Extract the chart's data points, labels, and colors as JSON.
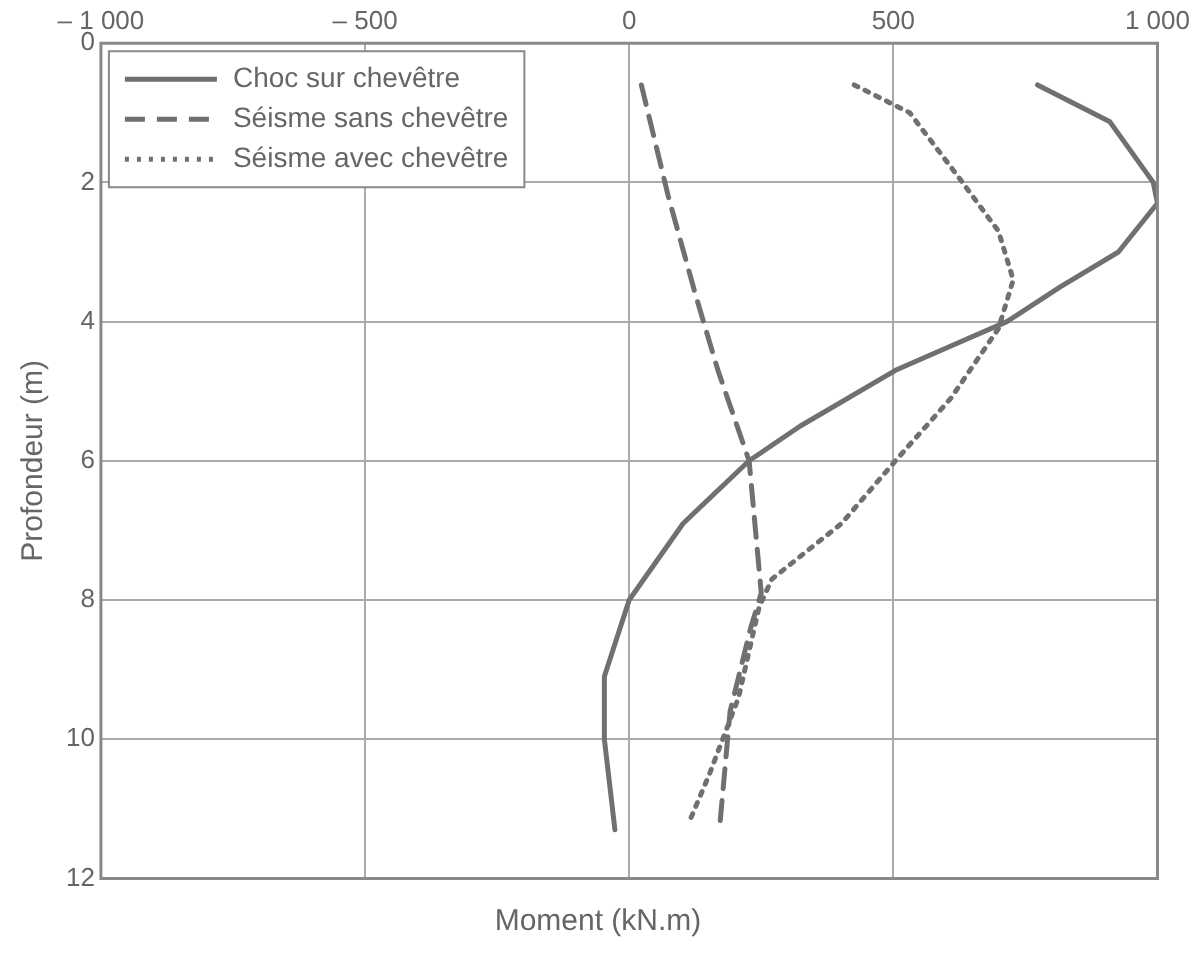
{
  "chart_data": {
    "type": "line",
    "xlabel": "Moment (kN.m)",
    "ylabel": "Profondeur (m)",
    "xlim": [
      -1000,
      1000
    ],
    "xticks": [
      {
        "value": -1000,
        "label": "– 1 000"
      },
      {
        "value": -500,
        "label": "– 500"
      },
      0,
      500,
      {
        "value": 1000,
        "label": "1 000"
      }
    ],
    "ylim": [
      12,
      0
    ],
    "yticks": [
      0,
      2,
      4,
      6,
      8,
      10,
      12
    ],
    "grid": true,
    "legend": "top left",
    "marker": "none",
    "series": [
      {
        "name": "Choc sur chevêtre",
        "color": "#707070",
        "line_style": "solid",
        "x": [
          773,
          910,
          992,
          1000,
          926,
          816,
          715,
          609,
          504,
          324,
          227,
          102,
          0,
          -47,
          -47,
          -27
        ],
        "values": [
          0.6,
          1.13,
          2.0,
          2.3,
          3.0,
          3.5,
          4.0,
          4.35,
          4.7,
          5.5,
          6.0,
          6.9,
          8.0,
          9.1,
          10.0,
          11.3
        ]
      },
      {
        "name": "Séisme sans chevêtre",
        "color": "#707070",
        "line_style": "dashed",
        "x": [
          23,
          74,
          125,
          168,
          227,
          250,
          230,
          191,
          172
        ],
        "values": [
          0.6,
          2.2,
          3.6,
          4.7,
          6.0,
          7.9,
          8.4,
          9.6,
          11.2
        ]
      },
      {
        "name": "Séisme avec chevêtre",
        "color": "#707070",
        "line_style": "dotted",
        "x": [
          426,
          531,
          621,
          699,
          727,
          699,
          609,
          504,
          402,
          270,
          246,
          207,
          152,
          113
        ],
        "values": [
          0.6,
          1.0,
          1.9,
          2.7,
          3.4,
          4.1,
          5.1,
          6.0,
          6.9,
          7.7,
          8.1,
          9.4,
          10.5,
          11.2
        ]
      }
    ]
  }
}
